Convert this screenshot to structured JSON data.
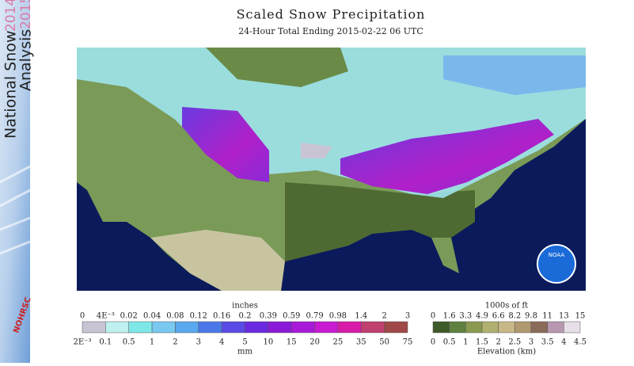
{
  "sidebar": {
    "title_line1": "National Snow",
    "title_line2": "Analysis",
    "year1": "2014-",
    "year2": "2015",
    "org": "NOHRSC"
  },
  "header": {
    "title": "Scaled Snow Precipitation",
    "subtitle": "24-Hour Total Ending 2015-02-22 06 UTC"
  },
  "map": {
    "logo": "NOAA"
  },
  "precip_legend": {
    "top_unit": "inches",
    "bottom_unit": "mm",
    "top_labels": [
      "0",
      "4E⁻³",
      "0.02",
      "0.04",
      "0.08",
      "0.12",
      "0.16",
      "0.2",
      "0.39",
      "0.59",
      "0.79",
      "0.98",
      "1.4",
      "2",
      "3"
    ],
    "bottom_labels": [
      "2E⁻³",
      "0.1",
      "0.5",
      "1",
      "2",
      "3",
      "4",
      "5",
      "10",
      "15",
      "20",
      "25",
      "35",
      "50",
      "75"
    ],
    "colors": [
      "#c8c4d4",
      "#bff0f0",
      "#7ee8e8",
      "#79c8f0",
      "#5aa8ee",
      "#4a78e8",
      "#5a4ae6",
      "#6a2ae0",
      "#8a1ad8",
      "#a81ad8",
      "#c81ad0",
      "#d81aa8",
      "#c04070",
      "#a04848"
    ]
  },
  "elevation_legend": {
    "top_unit": "1000s of ft",
    "bottom_unit": "Elevation (km)",
    "top_labels": [
      "0",
      "1.6",
      "3.3",
      "4.9",
      "6.6",
      "8.2",
      "9.8",
      "11",
      "13",
      "15"
    ],
    "bottom_labels": [
      "0",
      "0.5",
      "1",
      "1.5",
      "2",
      "2.5",
      "3",
      "3.5",
      "4",
      "4.5"
    ],
    "colors": [
      "#3e5a2a",
      "#5e8040",
      "#8a9a50",
      "#b0b070",
      "#c8b888",
      "#b09870",
      "#8a6a58",
      "#b898b0",
      "#e8e0e8"
    ]
  }
}
